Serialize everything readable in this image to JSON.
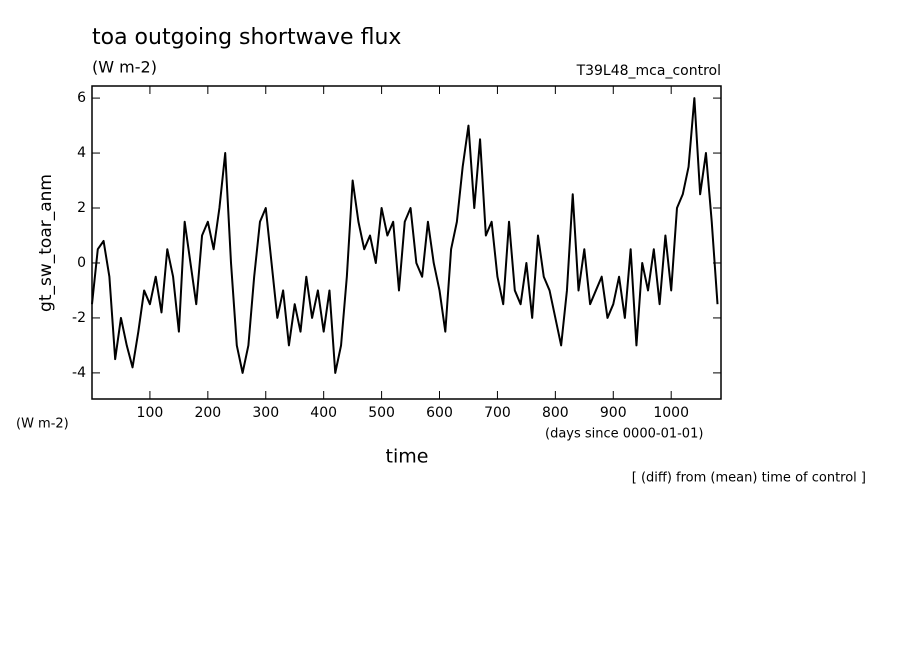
{
  "chart_data": {
    "type": "line",
    "title": "toa outgoing shortwave flux",
    "unit_top": "(W m-2)",
    "run_label": "T39L48_mca_control",
    "y_label": "gt_sw_toar_anm",
    "unit_left": "(W m-2)",
    "x_unit": "(days since 0000-01-01)",
    "x_label": "time",
    "note": "[ (diff) from (mean) time of control ]",
    "xlim": [
      0,
      1086
    ],
    "ylim": [
      -4.95,
      6.44
    ],
    "xticks": [
      100,
      200,
      300,
      400,
      500,
      600,
      700,
      800,
      900,
      1000
    ],
    "yticks": [
      -4,
      -2,
      0,
      2,
      4,
      6
    ],
    "x": [
      0,
      10,
      20,
      30,
      40,
      50,
      60,
      70,
      80,
      90,
      100,
      110,
      120,
      130,
      140,
      150,
      160,
      170,
      180,
      190,
      200,
      210,
      220,
      230,
      240,
      250,
      260,
      270,
      280,
      290,
      300,
      310,
      320,
      330,
      340,
      350,
      360,
      370,
      380,
      390,
      400,
      410,
      420,
      430,
      440,
      450,
      460,
      470,
      480,
      490,
      500,
      510,
      520,
      530,
      540,
      550,
      560,
      570,
      580,
      590,
      600,
      610,
      620,
      630,
      640,
      650,
      660,
      670,
      680,
      690,
      700,
      710,
      720,
      730,
      740,
      750,
      760,
      770,
      780,
      790,
      800,
      810,
      820,
      830,
      840,
      850,
      860,
      870,
      880,
      890,
      900,
      910,
      920,
      930,
      940,
      950,
      960,
      970,
      980,
      990,
      1000,
      1010,
      1020,
      1030,
      1040,
      1050,
      1060,
      1070,
      1080
    ],
    "series": [
      {
        "name": "gt_sw_toar_anm",
        "color": "#000000",
        "values": [
          -1.5,
          0.5,
          0.8,
          -0.5,
          -3.5,
          -2,
          -3,
          -3.8,
          -2.5,
          -1,
          -1.5,
          -0.5,
          -1.8,
          0.5,
          -0.5,
          -2.5,
          1.5,
          0,
          -1.5,
          1,
          1.5,
          0.5,
          2,
          4,
          0,
          -3,
          -4,
          -3,
          -0.5,
          1.5,
          2,
          0,
          -2,
          -1,
          -3,
          -1.5,
          -2.5,
          -0.5,
          -2,
          -1,
          -2.5,
          -1,
          -4,
          -3,
          -0.5,
          3,
          1.5,
          0.5,
          1,
          0,
          2,
          1,
          1.5,
          -1,
          1.5,
          2,
          0,
          -0.5,
          1.5,
          0,
          -1,
          -2.5,
          0.5,
          1.5,
          3.5,
          5,
          2,
          4.5,
          1,
          1.5,
          -0.5,
          -1.5,
          1.5,
          -1,
          -1.5,
          0,
          -2,
          1,
          -0.5,
          -1,
          -2,
          -3,
          -1,
          2.5,
          -1,
          0.5,
          -1.5,
          -1,
          -0.5,
          -2,
          -1.5,
          -0.5,
          -2,
          0.5,
          -3,
          0,
          -1,
          0.5,
          -1.5,
          1,
          -1,
          2,
          2.5,
          3.5,
          6,
          2.5,
          4,
          1.5,
          -1.5
        ]
      }
    ]
  }
}
